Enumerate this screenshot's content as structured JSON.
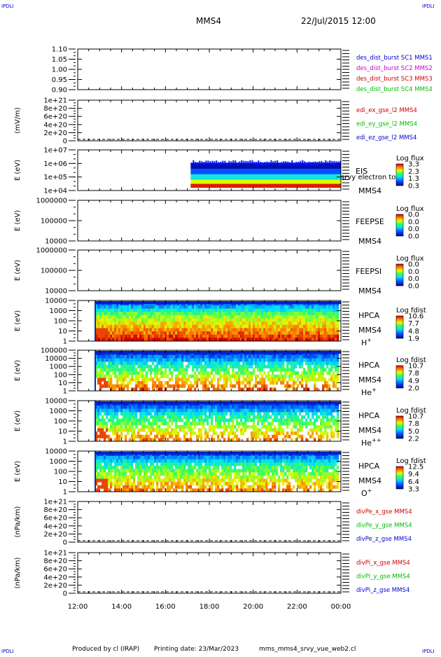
{
  "header": {
    "corner_label": "IPDLI",
    "title": "MMS4",
    "datetime": "22/Jul/2015 12:00"
  },
  "footer": {
    "produced_by": "Produced by  cl (IRAP)",
    "printing_date": "Printing date: 23/Mar/2023",
    "script_name": "mms_mms4_srvy_vue_web2.cl"
  },
  "colors": {
    "sc1": "#0000cc",
    "sc2": "#cc00cc",
    "sc3": "#cc0000",
    "sc4": "#00bb00",
    "x_comp": "#cc0000",
    "y_comp": "#00bb00",
    "z_comp": "#0000cc"
  },
  "chart_data": {
    "type": "heatmap",
    "time_axis": {
      "ticks": [
        "12:00",
        "14:00",
        "16:00",
        "18:00",
        "20:00",
        "22:00",
        "00:00"
      ],
      "range_hours": [
        12,
        24
      ]
    },
    "panels": [
      {
        "id": "des-dist-burst",
        "kind": "line",
        "ylabel": "",
        "yticks": [
          "1.10",
          "1.05",
          "1.00",
          "0.95",
          "0.90"
        ],
        "ylim": [
          0.9,
          1.1
        ],
        "legend": [
          {
            "label": "des_dist_burst SC1 MMS1",
            "color": "#0000cc"
          },
          {
            "label": "des_dist_burst SC2 MMS2",
            "color": "#cc00cc"
          },
          {
            "label": "des_dist_burst SC3 MMS3",
            "color": "#cc0000"
          },
          {
            "label": "des_dist_burst SC4 MMS4",
            "color": "#00bb00"
          }
        ]
      },
      {
        "id": "edi-e-field",
        "kind": "line",
        "ylabel": "(mV/m)",
        "yticks": [
          "1e+21",
          "8e+20",
          "6e+20",
          "4e+20",
          "2e+20",
          "0"
        ],
        "ylim": [
          0,
          1e+21
        ],
        "dashed_zero": true,
        "legend": [
          {
            "label": "edi_ex_gse_l2 MMS4",
            "color": "#cc0000"
          },
          {
            "label": "edi_ey_gse_l2 MMS4",
            "color": "#00bb00"
          },
          {
            "label": "edi_ez_gse_l2 MMS4",
            "color": "#0000cc"
          }
        ]
      },
      {
        "id": "eis-electron",
        "kind": "spectrogram",
        "ylabel": "E (eV)",
        "yticks": [
          "1e+07",
          "1e+06",
          "1e+05",
          "1e+04"
        ],
        "ylim_log": [
          4,
          7
        ],
        "instrument": "EIS",
        "overlay_text": "srvy electron to",
        "spacecraft": "MMS4",
        "colorbar": {
          "title": "Log flux",
          "ticks": [
            "3.3",
            "2.3",
            "1.3",
            "0.3"
          ],
          "range": [
            0.3,
            3.3
          ]
        },
        "data_start_hour": 17.15,
        "bands": [
          {
            "y_range": [
              4.2,
              4.5
            ],
            "value": 3.2
          },
          {
            "y_range": [
              4.5,
              4.8
            ],
            "value": 2.4
          },
          {
            "y_range": [
              4.8,
              5.2
            ],
            "value": 1.6
          },
          {
            "y_range": [
              5.2,
              5.6
            ],
            "value": 0.9
          },
          {
            "y_range": [
              5.6,
              6.05
            ],
            "value": 0.4
          }
        ]
      },
      {
        "id": "feeps-electron",
        "kind": "spectrogram",
        "ylabel": "E (eV)",
        "yticks": [
          "1000000",
          "100000",
          "10000"
        ],
        "ylim_log": [
          4,
          6
        ],
        "instrument": "FEEPSE",
        "spacecraft": "MMS4",
        "colorbar": {
          "title": "Log flux",
          "ticks": [
            "0.0",
            "0.0",
            "0.0",
            "0.0"
          ],
          "range": [
            0,
            1
          ]
        }
      },
      {
        "id": "feeps-ion",
        "kind": "spectrogram",
        "ylabel": "E (eV)",
        "yticks": [
          "1000000",
          "100000",
          "10000"
        ],
        "ylim_log": [
          4,
          6
        ],
        "instrument": "FEEPSI",
        "spacecraft": "MMS4",
        "colorbar": {
          "title": "Log flux",
          "ticks": [
            "0.0",
            "0.0",
            "0.0",
            "0.0"
          ],
          "range": [
            0,
            1
          ]
        }
      },
      {
        "id": "hpca-h",
        "kind": "spectrogram",
        "ylabel": "E (eV)",
        "yticks": [
          "10000",
          "1000",
          "100",
          "10",
          "1"
        ],
        "ylim_log": [
          0,
          4.6
        ],
        "instrument": "HPCA",
        "spacecraft": "MMS4",
        "species": "H",
        "species_sup": "+",
        "colorbar": {
          "title": "Log fdist",
          "ticks": [
            "10.6",
            "7.7",
            "4.8",
            "1.9"
          ],
          "range": [
            1.9,
            10.6
          ]
        },
        "data_start_hour": 12.8
      },
      {
        "id": "hpca-he",
        "kind": "spectrogram",
        "ylabel": "E (eV)",
        "yticks": [
          "100000",
          "10000",
          "1000",
          "100",
          "10",
          "1"
        ],
        "ylim_log": [
          0,
          5
        ],
        "instrument": "HPCA",
        "spacecraft": "MMS4",
        "species": "He",
        "species_sup": "+",
        "colorbar": {
          "title": "Log fdist",
          "ticks": [
            "10.7",
            "7.8",
            "4.9",
            "2.0"
          ],
          "range": [
            2.0,
            10.7
          ]
        },
        "data_start_hour": 12.8
      },
      {
        "id": "hpca-hepp",
        "kind": "spectrogram",
        "ylabel": "E (eV)",
        "yticks": [
          "10000",
          "1000",
          "100",
          "10",
          "1"
        ],
        "ylim_log": [
          0,
          4.6
        ],
        "instrument": "HPCA",
        "spacecraft": "MMS4",
        "species": "He",
        "species_sup": "++",
        "colorbar": {
          "title": "Log fdist",
          "ticks": [
            "10.7",
            "7.8",
            "5.0",
            "2.2"
          ],
          "range": [
            2.2,
            10.7
          ]
        },
        "data_start_hour": 12.8
      },
      {
        "id": "hpca-o",
        "kind": "spectrogram",
        "ylabel": "E (eV)",
        "yticks": [
          "10000",
          "1000",
          "100",
          "10",
          "1"
        ],
        "ylim_log": [
          0,
          4.6
        ],
        "instrument": "HPCA",
        "spacecraft": "MMS4",
        "species": "O",
        "species_sup": "+",
        "colorbar": {
          "title": "Log fdist",
          "ticks": [
            "12.5",
            "9.4",
            "6.4",
            "3.3"
          ],
          "range": [
            3.3,
            12.5
          ]
        },
        "data_start_hour": 12.8
      },
      {
        "id": "div-pe",
        "kind": "line",
        "ylabel": "(nPa/km)",
        "yticks": [
          "1e+21",
          "8e+20",
          "6e+20",
          "4e+20",
          "2e+20",
          "0"
        ],
        "ylim": [
          0,
          1e+21
        ],
        "dashed_zero": true,
        "legend": [
          {
            "label": "divPe_x_gse MMS4",
            "color": "#cc0000"
          },
          {
            "label": "divPe_y_gse MMS4",
            "color": "#00bb00"
          },
          {
            "label": "divPe_z_gse MMS4",
            "color": "#0000cc"
          }
        ]
      },
      {
        "id": "div-pi",
        "kind": "line",
        "ylabel": "(nPa/km)",
        "yticks": [
          "1e+21",
          "8e+20",
          "6e+20",
          "4e+20",
          "2e+20",
          "0"
        ],
        "ylim": [
          0,
          1e+21
        ],
        "dashed_zero": true,
        "legend": [
          {
            "label": "divPi_x_gse MMS4",
            "color": "#cc0000"
          },
          {
            "label": "divPi_y_gse MMS4",
            "color": "#00bb00"
          },
          {
            "label": "divPi_z_gse MMS4",
            "color": "#0000cc"
          }
        ]
      }
    ]
  }
}
